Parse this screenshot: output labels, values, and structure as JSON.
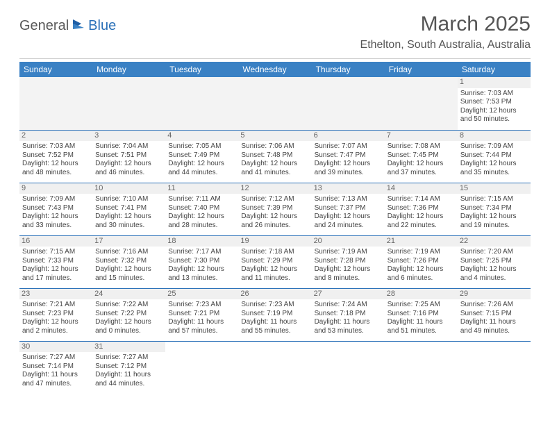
{
  "logo": {
    "text1": "General",
    "text2": "Blue"
  },
  "title": "March 2025",
  "location": "Ethelton, South Australia, Australia",
  "dayHeaders": [
    "Sunday",
    "Monday",
    "Tuesday",
    "Wednesday",
    "Thursday",
    "Friday",
    "Saturday"
  ],
  "colors": {
    "headerBg": "#3a81c4",
    "headerText": "#ffffff",
    "rowBorder": "#2a70b8",
    "blankBg": "#f3f3f3",
    "dayNumBg": "#f0f0f0",
    "logoBlue": "#2a70b8"
  },
  "days": {
    "1": {
      "sunrise": "7:03 AM",
      "sunset": "7:53 PM",
      "dlH": 12,
      "dlM": 50
    },
    "2": {
      "sunrise": "7:03 AM",
      "sunset": "7:52 PM",
      "dlH": 12,
      "dlM": 48
    },
    "3": {
      "sunrise": "7:04 AM",
      "sunset": "7:51 PM",
      "dlH": 12,
      "dlM": 46
    },
    "4": {
      "sunrise": "7:05 AM",
      "sunset": "7:49 PM",
      "dlH": 12,
      "dlM": 44
    },
    "5": {
      "sunrise": "7:06 AM",
      "sunset": "7:48 PM",
      "dlH": 12,
      "dlM": 41
    },
    "6": {
      "sunrise": "7:07 AM",
      "sunset": "7:47 PM",
      "dlH": 12,
      "dlM": 39
    },
    "7": {
      "sunrise": "7:08 AM",
      "sunset": "7:45 PM",
      "dlH": 12,
      "dlM": 37
    },
    "8": {
      "sunrise": "7:09 AM",
      "sunset": "7:44 PM",
      "dlH": 12,
      "dlM": 35
    },
    "9": {
      "sunrise": "7:09 AM",
      "sunset": "7:43 PM",
      "dlH": 12,
      "dlM": 33
    },
    "10": {
      "sunrise": "7:10 AM",
      "sunset": "7:41 PM",
      "dlH": 12,
      "dlM": 30
    },
    "11": {
      "sunrise": "7:11 AM",
      "sunset": "7:40 PM",
      "dlH": 12,
      "dlM": 28
    },
    "12": {
      "sunrise": "7:12 AM",
      "sunset": "7:39 PM",
      "dlH": 12,
      "dlM": 26
    },
    "13": {
      "sunrise": "7:13 AM",
      "sunset": "7:37 PM",
      "dlH": 12,
      "dlM": 24
    },
    "14": {
      "sunrise": "7:14 AM",
      "sunset": "7:36 PM",
      "dlH": 12,
      "dlM": 22
    },
    "15": {
      "sunrise": "7:15 AM",
      "sunset": "7:34 PM",
      "dlH": 12,
      "dlM": 19
    },
    "16": {
      "sunrise": "7:15 AM",
      "sunset": "7:33 PM",
      "dlH": 12,
      "dlM": 17
    },
    "17": {
      "sunrise": "7:16 AM",
      "sunset": "7:32 PM",
      "dlH": 12,
      "dlM": 15
    },
    "18": {
      "sunrise": "7:17 AM",
      "sunset": "7:30 PM",
      "dlH": 12,
      "dlM": 13
    },
    "19": {
      "sunrise": "7:18 AM",
      "sunset": "7:29 PM",
      "dlH": 12,
      "dlM": 11
    },
    "20": {
      "sunrise": "7:19 AM",
      "sunset": "7:28 PM",
      "dlH": 12,
      "dlM": 8
    },
    "21": {
      "sunrise": "7:19 AM",
      "sunset": "7:26 PM",
      "dlH": 12,
      "dlM": 6
    },
    "22": {
      "sunrise": "7:20 AM",
      "sunset": "7:25 PM",
      "dlH": 12,
      "dlM": 4
    },
    "23": {
      "sunrise": "7:21 AM",
      "sunset": "7:23 PM",
      "dlH": 12,
      "dlM": 2
    },
    "24": {
      "sunrise": "7:22 AM",
      "sunset": "7:22 PM",
      "dlH": 12,
      "dlM": 0
    },
    "25": {
      "sunrise": "7:23 AM",
      "sunset": "7:21 PM",
      "dlH": 11,
      "dlM": 57
    },
    "26": {
      "sunrise": "7:23 AM",
      "sunset": "7:19 PM",
      "dlH": 11,
      "dlM": 55
    },
    "27": {
      "sunrise": "7:24 AM",
      "sunset": "7:18 PM",
      "dlH": 11,
      "dlM": 53
    },
    "28": {
      "sunrise": "7:25 AM",
      "sunset": "7:16 PM",
      "dlH": 11,
      "dlM": 51
    },
    "29": {
      "sunrise": "7:26 AM",
      "sunset": "7:15 PM",
      "dlH": 11,
      "dlM": 49
    },
    "30": {
      "sunrise": "7:27 AM",
      "sunset": "7:14 PM",
      "dlH": 11,
      "dlM": 47
    },
    "31": {
      "sunrise": "7:27 AM",
      "sunset": "7:12 PM",
      "dlH": 11,
      "dlM": 44
    }
  },
  "labels": {
    "sunrise": "Sunrise:",
    "sunset": "Sunset:",
    "daylight": "Daylight:",
    "hours": "hours",
    "and": "and",
    "minutes": "minutes."
  },
  "grid": [
    [
      null,
      null,
      null,
      null,
      null,
      null,
      1
    ],
    [
      2,
      3,
      4,
      5,
      6,
      7,
      8
    ],
    [
      9,
      10,
      11,
      12,
      13,
      14,
      15
    ],
    [
      16,
      17,
      18,
      19,
      20,
      21,
      22
    ],
    [
      23,
      24,
      25,
      26,
      27,
      28,
      29
    ],
    [
      30,
      31,
      null,
      null,
      null,
      null,
      null
    ]
  ]
}
